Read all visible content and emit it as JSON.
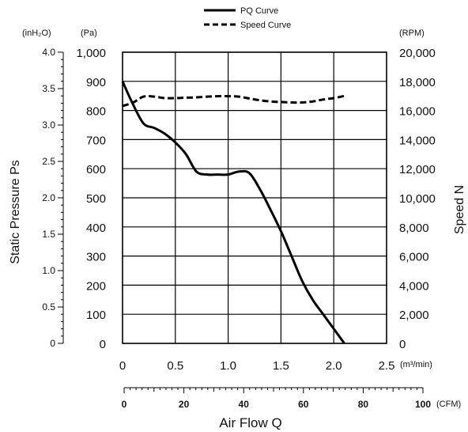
{
  "chart_data": {
    "type": "line",
    "legend": {
      "position": "top-center",
      "entries": [
        {
          "name": "PQ Curve",
          "style": "solid"
        },
        {
          "name": "Speed Curve",
          "style": "dashed"
        }
      ]
    },
    "axes": {
      "left_inner": {
        "unit": "(Pa)",
        "range": [
          0,
          1000
        ],
        "ticks": [
          "0",
          "100",
          "200",
          "300",
          "400",
          "500",
          "600",
          "700",
          "800",
          "900",
          "1,000"
        ]
      },
      "left_outer": {
        "unit": "(inH₂O)",
        "label": "Static Pressure Ps",
        "range": [
          0,
          4.0
        ],
        "ticks": [
          "0",
          "0.5",
          "1.0",
          "1.5",
          "2.0",
          "2.5",
          "3.0",
          "3.5",
          "4.0"
        ]
      },
      "right": {
        "unit": "(RPM)",
        "label": "Speed N",
        "range": [
          0,
          20000
        ],
        "ticks": [
          "0",
          "2,000",
          "4,000",
          "6,000",
          "8,000",
          "10,000",
          "12,000",
          "14,000",
          "16,000",
          "18,000",
          "20,000"
        ]
      },
      "x_m3": {
        "unit": "(m³/min)",
        "range": [
          0,
          2.5
        ],
        "ticks": [
          "0",
          "0.5",
          "1.0",
          "1.5",
          "2.0",
          "2.5"
        ]
      },
      "x_cfm": {
        "unit": "(CFM)",
        "label": "Air Flow Q",
        "range": [
          0,
          100
        ],
        "ticks": [
          "0",
          "20",
          "40",
          "60",
          "80",
          "100"
        ]
      }
    },
    "grid": true,
    "series": [
      {
        "name": "PQ Curve",
        "x_unit": "m³/min",
        "y_unit": "Pa",
        "x": [
          0,
          0.1,
          0.2,
          0.3,
          0.4,
          0.5,
          0.6,
          0.7,
          0.8,
          0.9,
          1.0,
          1.1,
          1.2,
          1.3,
          1.4,
          1.5,
          1.6,
          1.7,
          1.8,
          1.9,
          2.0,
          2.1
        ],
        "values": [
          900,
          820,
          755,
          740,
          720,
          690,
          650,
          590,
          580,
          580,
          580,
          590,
          585,
          530,
          460,
          385,
          300,
          215,
          150,
          100,
          50,
          0
        ]
      },
      {
        "name": "Speed Curve",
        "x_unit": "m³/min",
        "y_unit": "RPM",
        "x": [
          0,
          0.1,
          0.2,
          0.3,
          0.4,
          0.5,
          0.6,
          0.7,
          0.8,
          0.9,
          1.0,
          1.1,
          1.2,
          1.3,
          1.4,
          1.5,
          1.6,
          1.7,
          1.8,
          1.9,
          2.0,
          2.1
        ],
        "values": [
          16300,
          16550,
          16950,
          16950,
          16850,
          16850,
          16880,
          16900,
          16950,
          16980,
          16980,
          16950,
          16820,
          16700,
          16620,
          16580,
          16550,
          16550,
          16620,
          16750,
          16850,
          17000
        ]
      }
    ]
  }
}
